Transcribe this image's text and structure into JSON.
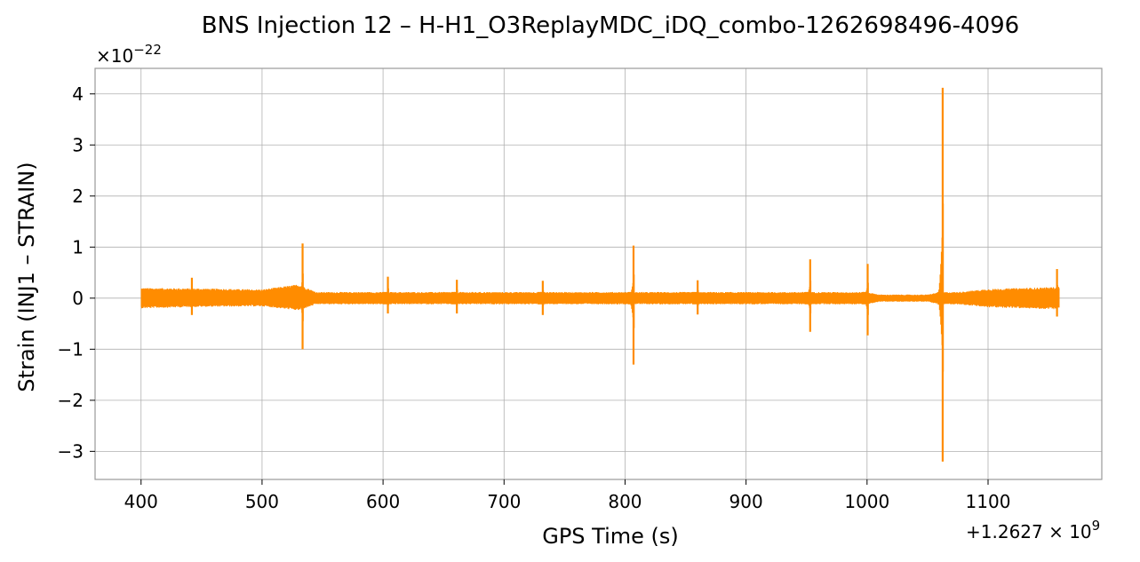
{
  "chart_data": {
    "type": "line",
    "title": "BNS Injection 12 – H-H1_O3ReplayMDC_iDQ_combo-1262698496-4096",
    "xlabel": "GPS Time (s)",
    "ylabel": "Strain (INJ1 – STRAIN)",
    "x_offset_label": "+1.2627 × 10",
    "x_offset_exp": "9",
    "y_multiplier_label": "×10",
    "y_multiplier_exp": "−22",
    "xlim": [
      362,
      1194
    ],
    "ylim": [
      -3.55,
      4.5
    ],
    "xticks": [
      400,
      500,
      600,
      700,
      800,
      900,
      1000,
      1100
    ],
    "xtick_labels": [
      "400",
      "500",
      "600",
      "700",
      "800",
      "900",
      "1000",
      "1100"
    ],
    "yticks": [
      -3,
      -2,
      -1,
      0,
      1,
      2,
      3,
      4
    ],
    "ytick_labels": [
      "−3",
      "−2",
      "−1",
      "0",
      "1",
      "2",
      "3",
      "4"
    ],
    "grid": true,
    "color": "#ff8c00",
    "series": [
      {
        "noise_envelope": {
          "x": [
            400,
            450,
            500,
            530,
            545,
            600,
            700,
            800,
            850,
            900,
            950,
            1000,
            1010,
            1050,
            1060,
            1075,
            1100,
            1159
          ],
          "upper": [
            0.2,
            0.19,
            0.17,
            0.27,
            0.12,
            0.12,
            0.12,
            0.12,
            0.12,
            0.12,
            0.12,
            0.12,
            0.07,
            0.07,
            0.12,
            0.12,
            0.18,
            0.22
          ],
          "lower": [
            -0.2,
            -0.17,
            -0.16,
            -0.24,
            -0.12,
            -0.12,
            -0.12,
            -0.12,
            -0.12,
            -0.12,
            -0.12,
            -0.12,
            -0.07,
            -0.07,
            -0.12,
            -0.12,
            -0.18,
            -0.22
          ]
        },
        "events": [
          {
            "x": 442,
            "max": 0.4,
            "min": -0.33
          },
          {
            "x": 533.5,
            "max": 1.07,
            "min": -1.0
          },
          {
            "x": 604,
            "max": 0.42,
            "min": -0.3
          },
          {
            "x": 661,
            "max": 0.36,
            "min": -0.3
          },
          {
            "x": 732,
            "max": 0.34,
            "min": -0.33
          },
          {
            "x": 807,
            "max": 1.03,
            "min": -1.3
          },
          {
            "x": 860,
            "max": 0.35,
            "min": -0.32
          },
          {
            "x": 953,
            "max": 0.76,
            "min": -0.66
          },
          {
            "x": 1000.5,
            "max": 0.67,
            "min": -0.73
          },
          {
            "x": 1062.5,
            "max": 4.12,
            "min": -3.2
          },
          {
            "x": 1157,
            "max": 0.57,
            "min": -0.36
          }
        ]
      }
    ]
  }
}
